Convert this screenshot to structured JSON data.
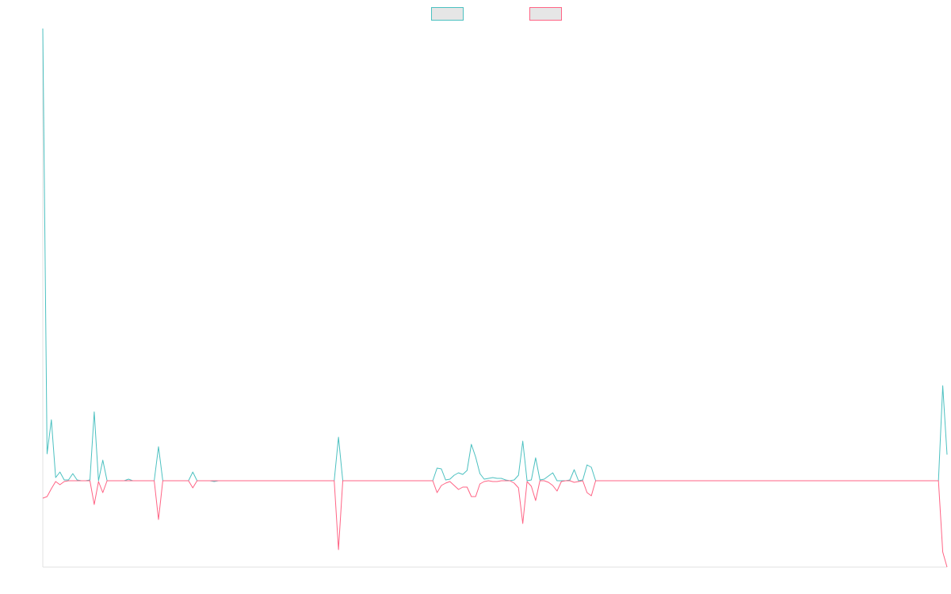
{
  "chart_data": {
    "type": "line",
    "ylim": [
      -10.9,
      57.1
    ],
    "legend": "top",
    "series": [
      {
        "color": "#4bc0c0",
        "values": [
          57.1,
          3.4,
          7.7,
          0.4,
          1.1,
          0.1,
          0.1,
          0.9,
          0.1,
          0,
          0,
          0.1,
          8.7,
          0,
          2.6,
          0,
          0,
          0,
          0,
          0,
          0.2,
          0,
          0,
          0,
          0,
          0,
          0,
          4.3,
          0,
          0,
          0,
          0,
          0,
          0,
          0,
          1.1,
          0,
          0,
          0,
          0,
          -0.1,
          0,
          0,
          0,
          0,
          0,
          0,
          0,
          0,
          0,
          0,
          0,
          0,
          0,
          0,
          0,
          0,
          0,
          0,
          0,
          0,
          0,
          0,
          0,
          0,
          0,
          0,
          0,
          0,
          5.5,
          0,
          0,
          0,
          0,
          0,
          0,
          0,
          0,
          0,
          0,
          0,
          0,
          0,
          0,
          0,
          0,
          0,
          0,
          0,
          0,
          0,
          0,
          1.6,
          1.5,
          0.1,
          0.2,
          0.7,
          1.0,
          0.8,
          1.3,
          4.6,
          3.0,
          0.9,
          0.2,
          0.3,
          0.4,
          0.3,
          0.3,
          0.1,
          0,
          0.1,
          0.7,
          5.0,
          0,
          0.1,
          2.9,
          0.1,
          0.2,
          0.6,
          1.0,
          0,
          0,
          0,
          0.1,
          1.4,
          0,
          0.1,
          2.0,
          1.7,
          0,
          0,
          0,
          0,
          0,
          0,
          0,
          0,
          0,
          0,
          0,
          0,
          0,
          0,
          0,
          0,
          0,
          0,
          0,
          0,
          0,
          0,
          0,
          0,
          0,
          0,
          0,
          0,
          0,
          0,
          0,
          0,
          0,
          0,
          0,
          0,
          0,
          0,
          0,
          0,
          0,
          0,
          0,
          0,
          0,
          0,
          0,
          0,
          0,
          0,
          0,
          0,
          0,
          0,
          0,
          0,
          0,
          0,
          0,
          0,
          0,
          0,
          0,
          0,
          0,
          0,
          0,
          0,
          0,
          0,
          0,
          0,
          0,
          0,
          0,
          0,
          0,
          0,
          0,
          0,
          0,
          12.0,
          3.3
        ]
      },
      {
        "color": "#ff6384",
        "values": [
          -2.2,
          -2.0,
          -1.0,
          -0.1,
          -0.5,
          -0.1,
          0,
          0,
          0,
          0,
          0,
          0,
          -3.0,
          -0.1,
          -1.5,
          0,
          0,
          0,
          0,
          0,
          0,
          0,
          0,
          0,
          0,
          0,
          0,
          -4.9,
          0,
          0,
          0,
          0,
          0,
          0,
          0,
          -0.9,
          0,
          0,
          0,
          0,
          0,
          0,
          0,
          0,
          0,
          0,
          0,
          0,
          0,
          0,
          0,
          0,
          0,
          0,
          0,
          0,
          0,
          0,
          0,
          0,
          0,
          0,
          0,
          0,
          0,
          0,
          0,
          0,
          0,
          -8.7,
          0,
          0,
          0,
          0,
          0,
          0,
          0,
          0,
          0,
          0,
          0,
          0,
          0,
          0,
          0,
          0,
          0,
          0,
          0,
          0,
          0,
          0,
          -1.5,
          -0.6,
          -0.3,
          -0.1,
          -0.6,
          -1.1,
          -0.8,
          -0.8,
          -2.0,
          -2.0,
          -0.4,
          -0.1,
          0,
          -0.1,
          -0.1,
          0,
          0,
          0,
          -0.3,
          -0.9,
          -5.4,
          -0.1,
          -0.7,
          -2.5,
          0,
          0,
          -0.2,
          -0.6,
          -1.3,
          -0.1,
          0,
          0,
          -0.2,
          -0.1,
          0,
          -1.5,
          -1.9,
          0,
          0,
          0,
          0,
          0,
          0,
          0,
          0,
          0,
          0,
          0,
          0,
          0,
          0,
          0,
          0,
          0,
          0,
          0,
          0,
          0,
          0,
          0,
          0,
          0,
          0,
          0,
          0,
          0,
          0,
          0,
          0,
          0,
          0,
          0,
          0,
          0,
          0,
          0,
          0,
          0,
          0,
          0,
          0,
          0,
          0,
          0,
          0,
          0,
          0,
          0,
          0,
          0,
          0,
          0,
          0,
          0,
          0,
          0,
          0,
          0,
          0,
          0,
          0,
          0,
          0,
          0,
          0,
          0,
          0,
          0,
          0,
          0,
          0,
          0,
          0,
          0,
          0,
          0,
          0,
          0,
          -9.0,
          -10.9
        ]
      }
    ]
  }
}
